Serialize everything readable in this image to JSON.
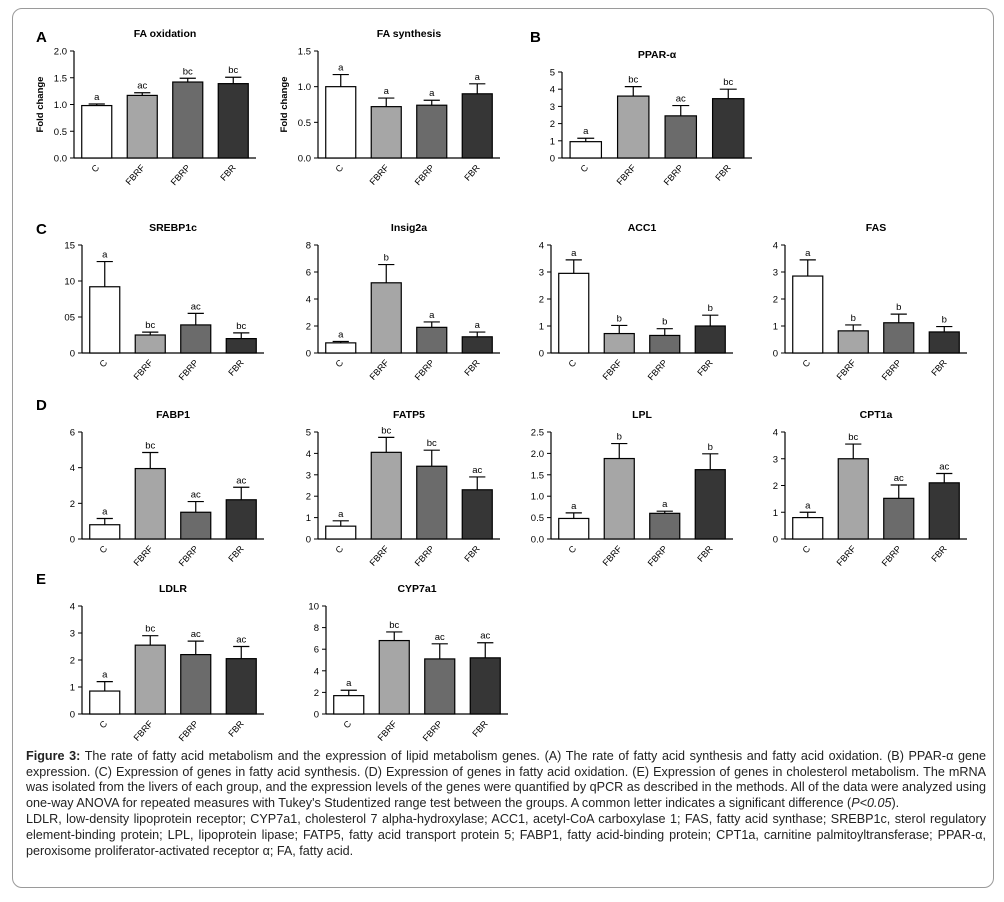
{
  "figure": {
    "panel_letters": [
      "A",
      "B",
      "C",
      "D",
      "E"
    ]
  },
  "chart_data": [
    {
      "panel": "A",
      "type": "bar",
      "title": "FA oxidation",
      "ylabel": "Fold change",
      "categories": [
        "C",
        "FBRF",
        "FBRP",
        "FBR"
      ],
      "values": [
        0.98,
        1.17,
        1.42,
        1.39
      ],
      "errors": [
        0.03,
        0.05,
        0.07,
        0.12
      ],
      "letters": [
        "a",
        "ac",
        "bc",
        "bc"
      ],
      "ylim": [
        0,
        2.0
      ],
      "ticks": [
        0,
        0.5,
        1.0,
        1.5,
        2.0
      ],
      "tick_labels": [
        "0.0",
        "0.5",
        "1.0",
        "1.5",
        "2.0"
      ]
    },
    {
      "panel": "A",
      "type": "bar",
      "title": "FA synthesis",
      "ylabel": "Fold change",
      "categories": [
        "C",
        "FBRF",
        "FBRP",
        "FBR"
      ],
      "values": [
        1.0,
        0.72,
        0.74,
        0.9
      ],
      "errors": [
        0.17,
        0.12,
        0.07,
        0.14
      ],
      "letters": [
        "a",
        "a",
        "a",
        "a"
      ],
      "ylim": [
        0,
        1.5
      ],
      "ticks": [
        0,
        0.5,
        1.0,
        1.5
      ],
      "tick_labels": [
        "0.0",
        "0.5",
        "1.0",
        "1.5"
      ]
    },
    {
      "panel": "B",
      "type": "bar",
      "title": "PPAR-α",
      "ylabel": "",
      "categories": [
        "C",
        "FBRF",
        "FBRP",
        "FBR"
      ],
      "values": [
        0.95,
        3.6,
        2.45,
        3.45
      ],
      "errors": [
        0.2,
        0.55,
        0.6,
        0.55
      ],
      "letters": [
        "a",
        "bc",
        "ac",
        "bc"
      ],
      "ylim": [
        0,
        5
      ],
      "ticks": [
        0,
        1,
        2,
        3,
        4,
        5
      ],
      "tick_labels": [
        "0",
        "1",
        "2",
        "3",
        "4",
        "5"
      ]
    },
    {
      "panel": "C",
      "type": "bar",
      "title": "SREBP1c",
      "ylabel": "",
      "categories": [
        "C",
        "FBRF",
        "FBRP",
        "FBR"
      ],
      "values": [
        9.2,
        2.5,
        3.9,
        2.0
      ],
      "errors": [
        3.5,
        0.4,
        1.6,
        0.8
      ],
      "letters": [
        "a",
        "bc",
        "ac",
        "bc"
      ],
      "ylim": [
        0,
        15
      ],
      "ticks": [
        0,
        5,
        10,
        15
      ],
      "tick_labels": [
        "0",
        "05",
        "10",
        "15"
      ]
    },
    {
      "panel": "C",
      "type": "bar",
      "title": "Insig2a",
      "ylabel": "",
      "categories": [
        "C",
        "FBRF",
        "FBRP",
        "FBR"
      ],
      "values": [
        0.75,
        5.2,
        1.9,
        1.2
      ],
      "errors": [
        0.1,
        1.35,
        0.4,
        0.35
      ],
      "letters": [
        "a",
        "b",
        "a",
        "a"
      ],
      "ylim": [
        0,
        8
      ],
      "ticks": [
        0,
        2,
        4,
        6,
        8
      ],
      "tick_labels": [
        "0",
        "2",
        "4",
        "6",
        "8"
      ]
    },
    {
      "panel": "C",
      "type": "bar",
      "title": "ACC1",
      "ylabel": "",
      "categories": [
        "C",
        "FBRF",
        "FBRP",
        "FBR"
      ],
      "values": [
        2.95,
        0.72,
        0.65,
        1.0
      ],
      "errors": [
        0.5,
        0.3,
        0.25,
        0.4
      ],
      "letters": [
        "a",
        "b",
        "b",
        "b"
      ],
      "ylim": [
        0,
        4
      ],
      "ticks": [
        0,
        1,
        2,
        3,
        4
      ],
      "tick_labels": [
        "0",
        "1",
        "2",
        "3",
        "4"
      ]
    },
    {
      "panel": "C",
      "type": "bar",
      "title": "FAS",
      "ylabel": "",
      "categories": [
        "C",
        "FBRF",
        "FBRP",
        "FBR"
      ],
      "values": [
        2.85,
        0.82,
        1.12,
        0.78
      ],
      "errors": [
        0.6,
        0.22,
        0.32,
        0.2
      ],
      "letters": [
        "a",
        "b",
        "b",
        "b"
      ],
      "ylim": [
        0,
        4
      ],
      "ticks": [
        0,
        1,
        2,
        3,
        4
      ],
      "tick_labels": [
        "0",
        "1",
        "2",
        "3",
        "4"
      ]
    },
    {
      "panel": "D",
      "type": "bar",
      "title": "FABP1",
      "ylabel": "",
      "categories": [
        "C",
        "FBRF",
        "FBRP",
        "FBR"
      ],
      "values": [
        0.8,
        3.95,
        1.5,
        2.2
      ],
      "errors": [
        0.35,
        0.9,
        0.6,
        0.7
      ],
      "letters": [
        "a",
        "bc",
        "ac",
        "ac"
      ],
      "ylim": [
        0,
        6
      ],
      "ticks": [
        0,
        2,
        4,
        6
      ],
      "tick_labels": [
        "0",
        "2",
        "4",
        "6"
      ]
    },
    {
      "panel": "D",
      "type": "bar",
      "title": "FATP5",
      "ylabel": "",
      "categories": [
        "C",
        "FBRF",
        "FBRP",
        "FBR"
      ],
      "values": [
        0.6,
        4.05,
        3.4,
        2.3
      ],
      "errors": [
        0.25,
        0.7,
        0.75,
        0.6
      ],
      "letters": [
        "a",
        "bc",
        "bc",
        "ac"
      ],
      "ylim": [
        0,
        5
      ],
      "ticks": [
        0,
        1,
        2,
        3,
        4,
        5
      ],
      "tick_labels": [
        "0",
        "1",
        "2",
        "3",
        "4",
        "5"
      ]
    },
    {
      "panel": "D",
      "type": "bar",
      "title": "LPL",
      "ylabel": "",
      "categories": [
        "C",
        "FBRF",
        "FBRP",
        "FBR"
      ],
      "values": [
        0.48,
        1.88,
        0.6,
        1.62
      ],
      "errors": [
        0.13,
        0.35,
        0.05,
        0.37
      ],
      "letters": [
        "a",
        "b",
        "a",
        "b"
      ],
      "ylim": [
        0,
        2.5
      ],
      "ticks": [
        0,
        0.5,
        1.0,
        1.5,
        2.0,
        2.5
      ],
      "tick_labels": [
        "0.0",
        "0.5",
        "1.0",
        "1.5",
        "2.0",
        "2.5"
      ]
    },
    {
      "panel": "D",
      "type": "bar",
      "title": "CPT1a",
      "ylabel": "",
      "categories": [
        "C",
        "FBRF",
        "FBRP",
        "FBR"
      ],
      "values": [
        0.8,
        3.0,
        1.52,
        2.1
      ],
      "errors": [
        0.2,
        0.55,
        0.5,
        0.35
      ],
      "letters": [
        "a",
        "bc",
        "ac",
        "ac"
      ],
      "ylim": [
        0,
        4
      ],
      "ticks": [
        0,
        1,
        2,
        3,
        4
      ],
      "tick_labels": [
        "0",
        "1",
        "2",
        "3",
        "4"
      ]
    },
    {
      "panel": "E",
      "type": "bar",
      "title": "LDLR",
      "ylabel": "",
      "categories": [
        "C",
        "FBRF",
        "FBRP",
        "FBR"
      ],
      "values": [
        0.85,
        2.55,
        2.2,
        2.05
      ],
      "errors": [
        0.35,
        0.35,
        0.5,
        0.45
      ],
      "letters": [
        "a",
        "bc",
        "ac",
        "ac"
      ],
      "ylim": [
        0,
        4
      ],
      "ticks": [
        0,
        1,
        2,
        3,
        4
      ],
      "tick_labels": [
        "0",
        "1",
        "2",
        "3",
        "4"
      ]
    },
    {
      "panel": "E",
      "type": "bar",
      "title": "CYP7a1",
      "ylabel": "",
      "categories": [
        "C",
        "FBRF",
        "FBRP",
        "FBR"
      ],
      "values": [
        1.7,
        6.8,
        5.1,
        5.2
      ],
      "errors": [
        0.5,
        0.8,
        1.4,
        1.4
      ],
      "letters": [
        "a",
        "bc",
        "ac",
        "ac"
      ],
      "ylim": [
        0,
        10
      ],
      "ticks": [
        0,
        2,
        4,
        6,
        8,
        10
      ],
      "tick_labels": [
        "0",
        "2",
        "4",
        "6",
        "8",
        "10"
      ]
    }
  ],
  "colors": {
    "C": "#ffffff",
    "FBRF": "#a6a6a6",
    "FBRP": "#6b6b6b",
    "FBR": "#363636",
    "axis": "#000000"
  },
  "caption": {
    "figure_label": "Figure 3:",
    "title": "The rate of fatty acid metabolism and the expression of lipid metabolism genes.",
    "body": "(A) The rate of fatty acid synthesis and fatty acid oxidation. (B) PPAR-α gene expression. (C) Expression of genes in fatty acid synthesis. (D) Expression of genes in fatty acid oxidation. (E) Expression of genes in cholesterol metabolism. The mRNA was isolated from the livers of each group, and the expression levels of the genes were quantified by qPCR as described in the methods. All of the data were analyzed using one-way ANOVA for repeated measures with Tukey's Studentized range test between the groups. A common letter indicates a significant difference (",
    "p_value": "P<0.05",
    "body_end": ").",
    "abbreviations": "LDLR, low-density lipoprotein receptor; CYP7a1, cholesterol 7 alpha-hydroxylase; ACC1, acetyl-CoA carboxylase 1; FAS, fatty acid synthase; SREBP1c, sterol regulatory element-binding protein; LPL, lipoprotein lipase; FATP5, fatty acid transport protein 5; FABP1, fatty acid-binding protein; CPT1a, carnitine palmitoyltransferase; PPAR-α, peroxisome proliferator-activated receptor α; FA, fatty acid."
  }
}
